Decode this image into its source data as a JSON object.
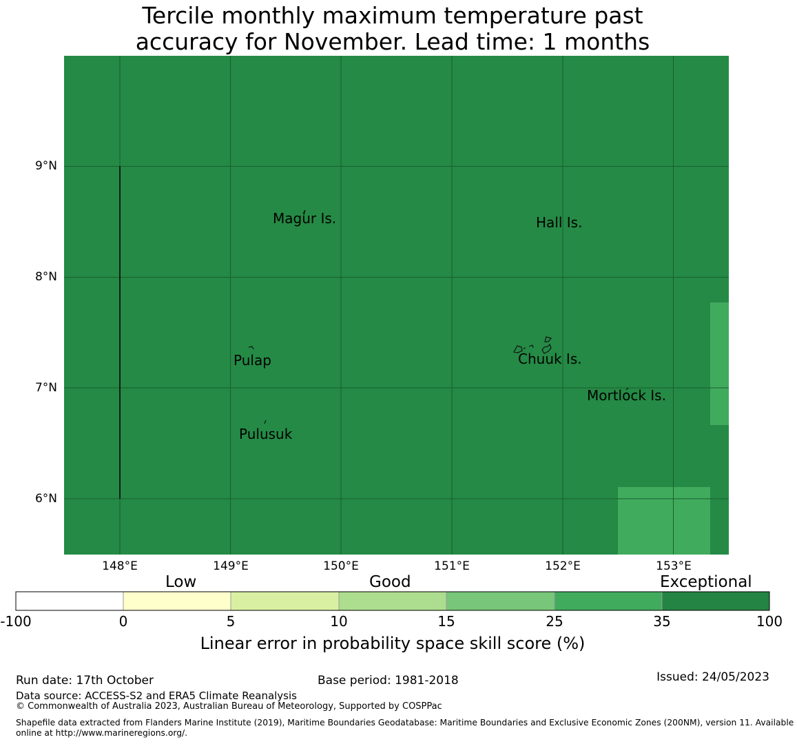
{
  "title_line1": "Tercile monthly maximum temperature past",
  "title_line2": "accuracy for November. Lead time: 1 months",
  "map": {
    "lon_range": [
      147.5,
      153.5
    ],
    "lat_range": [
      5.5,
      10.0
    ],
    "latitude_ticks": [
      "9°N",
      "8°N",
      "7°N",
      "6°N"
    ],
    "longitude_ticks": [
      "148°E",
      "149°E",
      "150°E",
      "151°E",
      "152°E",
      "153°E"
    ],
    "background_category": "35–100",
    "highlight_cells_category": "25–35",
    "places": [
      {
        "name": "Magur Is."
      },
      {
        "name": "Hall Is."
      },
      {
        "name": "Pulap"
      },
      {
        "name": "Chuuk Is."
      },
      {
        "name": "Mortlock Is."
      },
      {
        "name": "Pulusuk"
      }
    ],
    "colors": {
      "exceptional": "#248a45",
      "high": "#41ab5d",
      "grid": "#1a5e2e"
    }
  },
  "colorbar": {
    "categories": [
      "Low",
      "Good",
      "Exceptional"
    ],
    "ticks": [
      "-100",
      "0",
      "5",
      "10",
      "15",
      "25",
      "35",
      "100"
    ],
    "colors": [
      "#ffffff",
      "#ffffcc",
      "#d9f0a3",
      "#addd8e",
      "#78c679",
      "#41ab5d",
      "#238443"
    ],
    "label": "Linear error in probability space skill score (%)"
  },
  "footer": {
    "run_date": "Run date: 17th October",
    "base_period": "Base period: 1981-2018",
    "issued": "Issued: 24/05/2023",
    "data_source": "Data source: ACCESS-S2 and ERA5 Climate Reanalysis",
    "copyright": "© Commonwealth of Australia 2023, Australian Bureau of Meteorology, Supported by COSPPac",
    "shapefile_line1": "Shapefile data extracted from Flanders Marine Institute (2019), Maritime Boundaries Geodatabase: Maritime Boundaries and Exclusive Economic Zones (200NM), version 11. Available",
    "shapefile_line2": "online at http://www.marineregions.org/."
  }
}
